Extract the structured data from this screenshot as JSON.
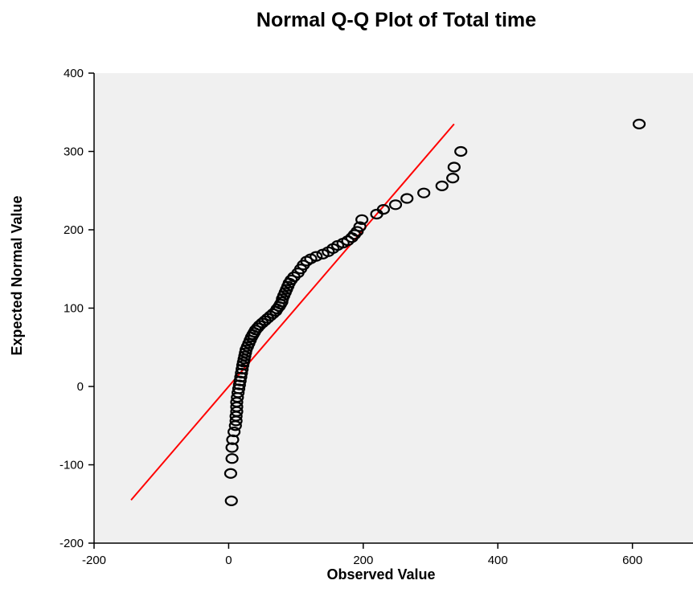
{
  "chart_data": {
    "type": "scatter",
    "title": "Normal Q-Q Plot of Total time",
    "xlabel": "Observed Value",
    "ylabel": "Expected Normal Value",
    "xlim": [
      -200,
      690
    ],
    "ylim": [
      -200,
      400
    ],
    "xticks": [
      -200,
      0,
      200,
      400,
      600
    ],
    "yticks": [
      -200,
      -100,
      0,
      100,
      200,
      300,
      400
    ],
    "xtick_labels": [
      "-200",
      "0",
      "200",
      "400",
      "600"
    ],
    "ytick_labels": [
      "-200",
      "-100",
      "0",
      "100",
      "200",
      "300",
      "400"
    ],
    "grid": false,
    "plot_background": "#f0f0f0",
    "series": [
      {
        "x": [
          4,
          3,
          5,
          5,
          6,
          8,
          10,
          11,
          11,
          12,
          12,
          12,
          13,
          14,
          15,
          16,
          17,
          18,
          19,
          20,
          21,
          22,
          23,
          24,
          25,
          26,
          28,
          30,
          32,
          34,
          36,
          38,
          40,
          43,
          46,
          50,
          54,
          58,
          62,
          66,
          70,
          72,
          75,
          77,
          79,
          80,
          82,
          84,
          86,
          88,
          90,
          93,
          97,
          103,
          107,
          111,
          116,
          122,
          130,
          140,
          148,
          155,
          162,
          170,
          177,
          183,
          187,
          191,
          195,
          198,
          220,
          230,
          248,
          265,
          290,
          317,
          333,
          335,
          345,
          610
        ],
        "y": [
          -146,
          -111,
          -92,
          -78,
          -68,
          -58,
          -50,
          -44,
          -38,
          -32,
          -26,
          -20,
          -14,
          -8,
          -3,
          2,
          7,
          12,
          17,
          22,
          27,
          31,
          35,
          39,
          43,
          47,
          51,
          55,
          59,
          63,
          66,
          69,
          72,
          75,
          78,
          81,
          84,
          87,
          90,
          93,
          96,
          99,
          102,
          105,
          108,
          112,
          116,
          120,
          124,
          128,
          132,
          136,
          140,
          145,
          150,
          155,
          160,
          163,
          166,
          169,
          172,
          176,
          180,
          183,
          186,
          190,
          194,
          198,
          204,
          213,
          220,
          226,
          232,
          240,
          247,
          256,
          266,
          280,
          300,
          335
        ],
        "marker": "circle-open",
        "color": "#000000"
      }
    ],
    "reference_line": {
      "x": [
        -145,
        335
      ],
      "y": [
        -145,
        335
      ],
      "color": "#ff0000"
    }
  }
}
